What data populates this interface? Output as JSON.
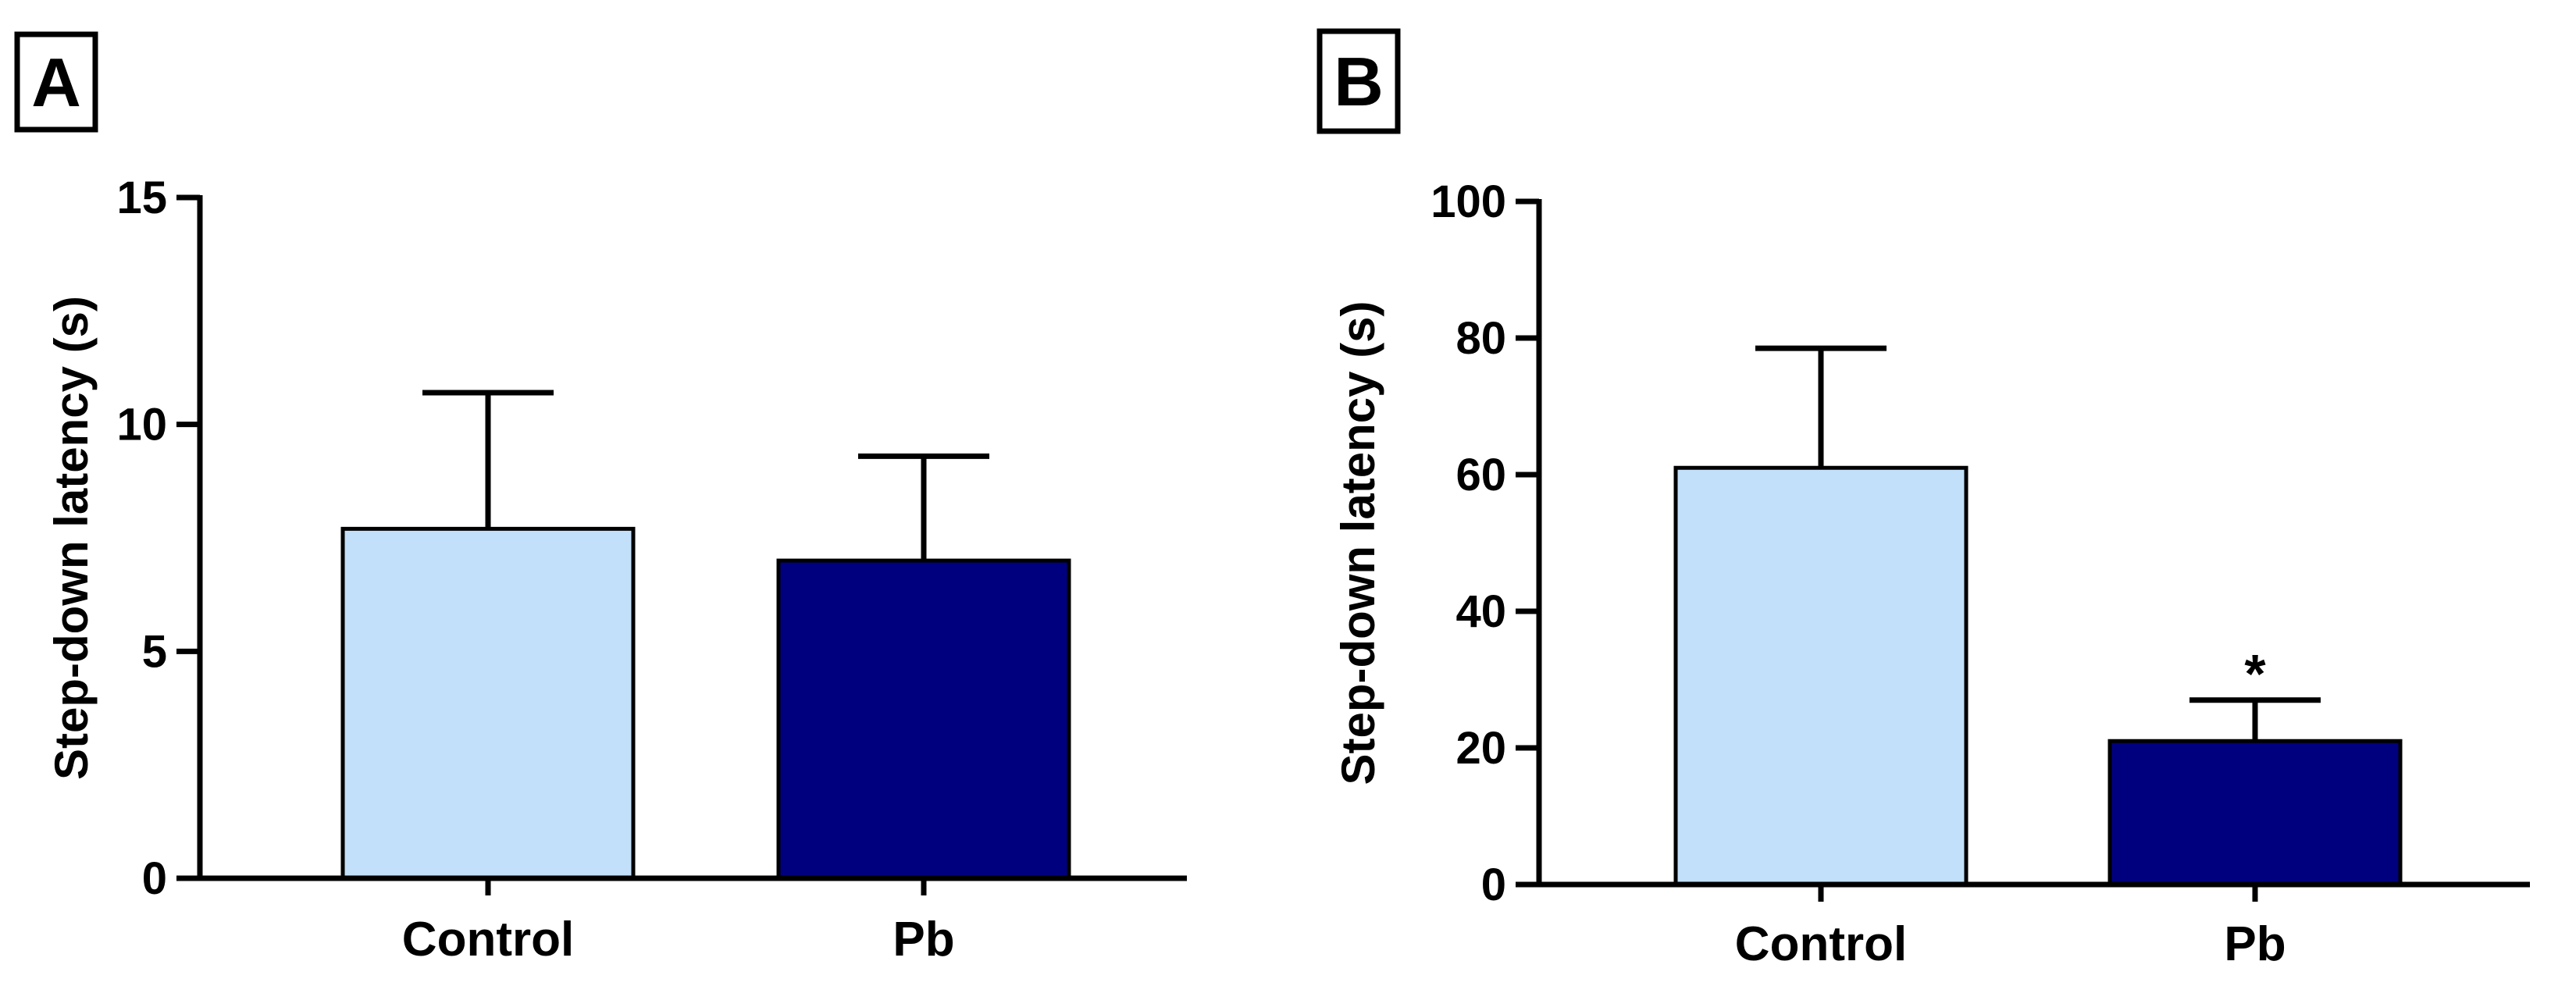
{
  "chart_data": [
    {
      "panel_label": "A",
      "type": "bar",
      "categories": [
        "Control",
        "Pb"
      ],
      "values": [
        7.7,
        7.0
      ],
      "errors": [
        3.0,
        2.3
      ],
      "annotations": [
        "",
        ""
      ],
      "ylabel": "Step-down latency (s)",
      "xlabel": "",
      "ylim": [
        0,
        15
      ],
      "yticks": [
        0,
        5,
        10,
        15
      ],
      "colors": [
        "#c2e0f9",
        "#00007f"
      ],
      "grid": false
    },
    {
      "panel_label": "B",
      "type": "bar",
      "categories": [
        "Control",
        "Pb"
      ],
      "values": [
        61,
        21
      ],
      "errors": [
        17.5,
        6
      ],
      "annotations": [
        "",
        "*"
      ],
      "ylabel": "Step-down latency (s)",
      "xlabel": "",
      "ylim": [
        0,
        100
      ],
      "yticks": [
        0,
        20,
        40,
        60,
        80,
        100
      ],
      "colors": [
        "#c2e0f9",
        "#00007f"
      ],
      "grid": false
    }
  ]
}
